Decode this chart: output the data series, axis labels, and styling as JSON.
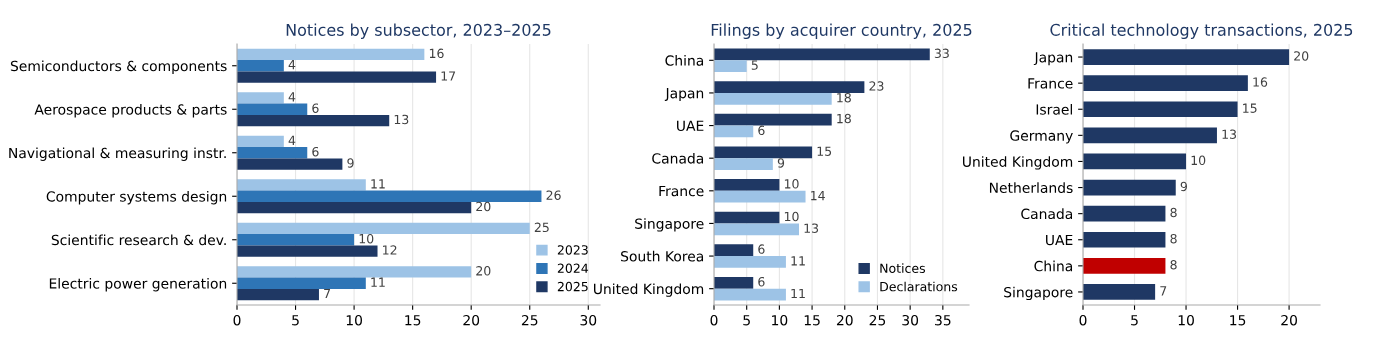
{
  "chart_data": [
    {
      "type": "bar",
      "orientation": "horizontal",
      "title": "Notices by subsector, 2023–2025",
      "categories": [
        "Semiconductors & components",
        "Aerospace products & parts",
        "Navigational & measuring instr.",
        "Computer systems design",
        "Scientific research & dev.",
        "Electric power generation"
      ],
      "series": [
        {
          "name": "2023",
          "color": "#9dc3e6",
          "values": [
            16,
            4,
            4,
            11,
            25,
            20
          ]
        },
        {
          "name": "2024",
          "color": "#2e75b6",
          "values": [
            4,
            6,
            6,
            26,
            10,
            11
          ]
        },
        {
          "name": "2025",
          "color": "#1f3864",
          "values": [
            17,
            13,
            9,
            20,
            12,
            7
          ]
        }
      ],
      "xlim": [
        0,
        31
      ],
      "xticks": [
        0,
        5,
        10,
        15,
        20,
        25,
        30
      ],
      "grid": "x",
      "legend": "bottom right",
      "data_labels": true
    },
    {
      "type": "bar",
      "orientation": "horizontal",
      "title": "Filings by acquirer country, 2025",
      "categories": [
        "China",
        "Japan",
        "UAE",
        "Canada",
        "France",
        "Singapore",
        "South Korea",
        "United Kingdom"
      ],
      "series": [
        {
          "name": "Notices",
          "color": "#1f3864",
          "values": [
            33,
            23,
            18,
            15,
            10,
            10,
            6,
            6
          ]
        },
        {
          "name": "Declarations",
          "color": "#9dc3e6",
          "values": [
            5,
            18,
            6,
            9,
            14,
            13,
            11,
            11
          ]
        }
      ],
      "xlim": [
        0,
        39
      ],
      "xticks": [
        0,
        5,
        10,
        15,
        20,
        25,
        30,
        35
      ],
      "grid": "x",
      "legend": "bottom right",
      "data_labels": true
    },
    {
      "type": "bar",
      "orientation": "horizontal",
      "title": "Critical technology transactions, 2025",
      "categories": [
        "Japan",
        "France",
        "Israel",
        "Germany",
        "United Kingdom",
        "Netherlands",
        "Canada",
        "UAE",
        "China",
        "Singapore"
      ],
      "values": [
        20,
        16,
        15,
        13,
        10,
        9,
        8,
        8,
        8,
        7
      ],
      "colors": [
        "#1f3864",
        "#1f3864",
        "#1f3864",
        "#1f3864",
        "#1f3864",
        "#1f3864",
        "#1f3864",
        "#1f3864",
        "#c00000",
        "#1f3864"
      ],
      "xlim": [
        0,
        23
      ],
      "xticks": [
        0,
        5,
        10,
        15,
        20
      ],
      "grid": "x",
      "data_labels": true
    }
  ]
}
